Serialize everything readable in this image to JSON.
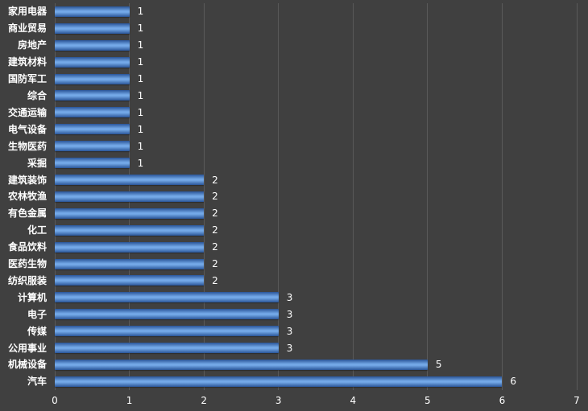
{
  "chart_data": {
    "type": "bar",
    "orientation": "horizontal",
    "title": "",
    "xlabel": "",
    "ylabel": "",
    "categories": [
      "家用电器",
      "商业贸易",
      "房地产",
      "建筑材料",
      "国防军工",
      "综合",
      "交通运输",
      "电气设备",
      "生物医药",
      "采掘",
      "建筑装饰",
      "农林牧渔",
      "有色金属",
      "化工",
      "食品饮料",
      "医药生物",
      "纺织服装",
      "计算机",
      "电子",
      "传媒",
      "公用事业",
      "机械设备",
      "汽车"
    ],
    "values": [
      1,
      1,
      1,
      1,
      1,
      1,
      1,
      1,
      1,
      1,
      2,
      2,
      2,
      2,
      2,
      2,
      2,
      3,
      3,
      3,
      3,
      5,
      6
    ],
    "data_labels": [
      "1",
      "1",
      "1",
      "1",
      "1",
      "1",
      "1",
      "1",
      "1",
      "1",
      "2",
      "2",
      "2",
      "2",
      "2",
      "2",
      "2",
      "3",
      "3",
      "3",
      "3",
      "5",
      "6"
    ],
    "xlim": [
      0,
      7
    ],
    "x_ticks": [
      0,
      1,
      2,
      3,
      4,
      5,
      6,
      7
    ],
    "grid": true,
    "legend": false,
    "colors": {
      "background": "#404040",
      "gridline": "#5a5a5a",
      "bar_edge": "#2a5598",
      "bar_mid": "#74a9e8",
      "text": "#ffffff"
    }
  }
}
